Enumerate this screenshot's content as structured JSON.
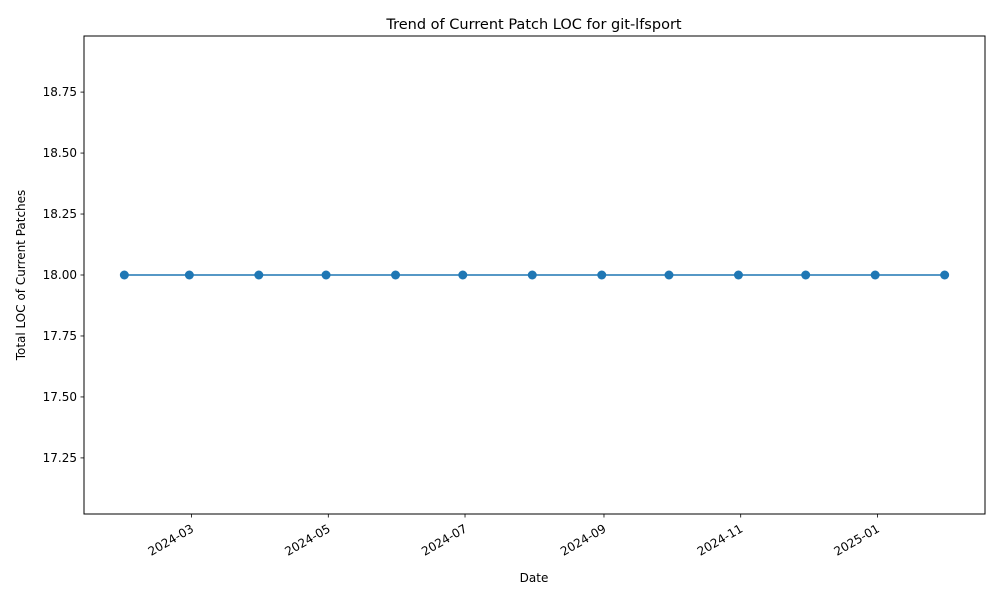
{
  "chart_data": {
    "type": "line",
    "title": "Trend of Current Patch LOC for git-lfsport",
    "xlabel": "Date",
    "ylabel": "Total LOC of Current Patches",
    "x": [
      "2024-01-31",
      "2024-02-29",
      "2024-03-31",
      "2024-04-30",
      "2024-05-31",
      "2024-06-30",
      "2024-07-31",
      "2024-08-31",
      "2024-09-30",
      "2024-10-31",
      "2024-11-30",
      "2024-12-31",
      "2025-01-31"
    ],
    "series": [
      {
        "values": [
          18,
          18,
          18,
          18,
          18,
          18,
          18,
          18,
          18,
          18,
          18,
          18,
          18
        ]
      }
    ],
    "x_ticks": [
      "2024-03",
      "2024-05",
      "2024-07",
      "2024-09",
      "2024-11",
      "2025-01"
    ],
    "y_ticks": [
      "17.25",
      "17.50",
      "17.75",
      "18.00",
      "18.25",
      "18.50",
      "18.75"
    ],
    "xlim": [
      "2024-01-13",
      "2025-02-18"
    ],
    "ylim": [
      17.02,
      18.98
    ],
    "grid": false,
    "legend": "none",
    "line_color": "#1f77b4",
    "marker": "circle"
  }
}
